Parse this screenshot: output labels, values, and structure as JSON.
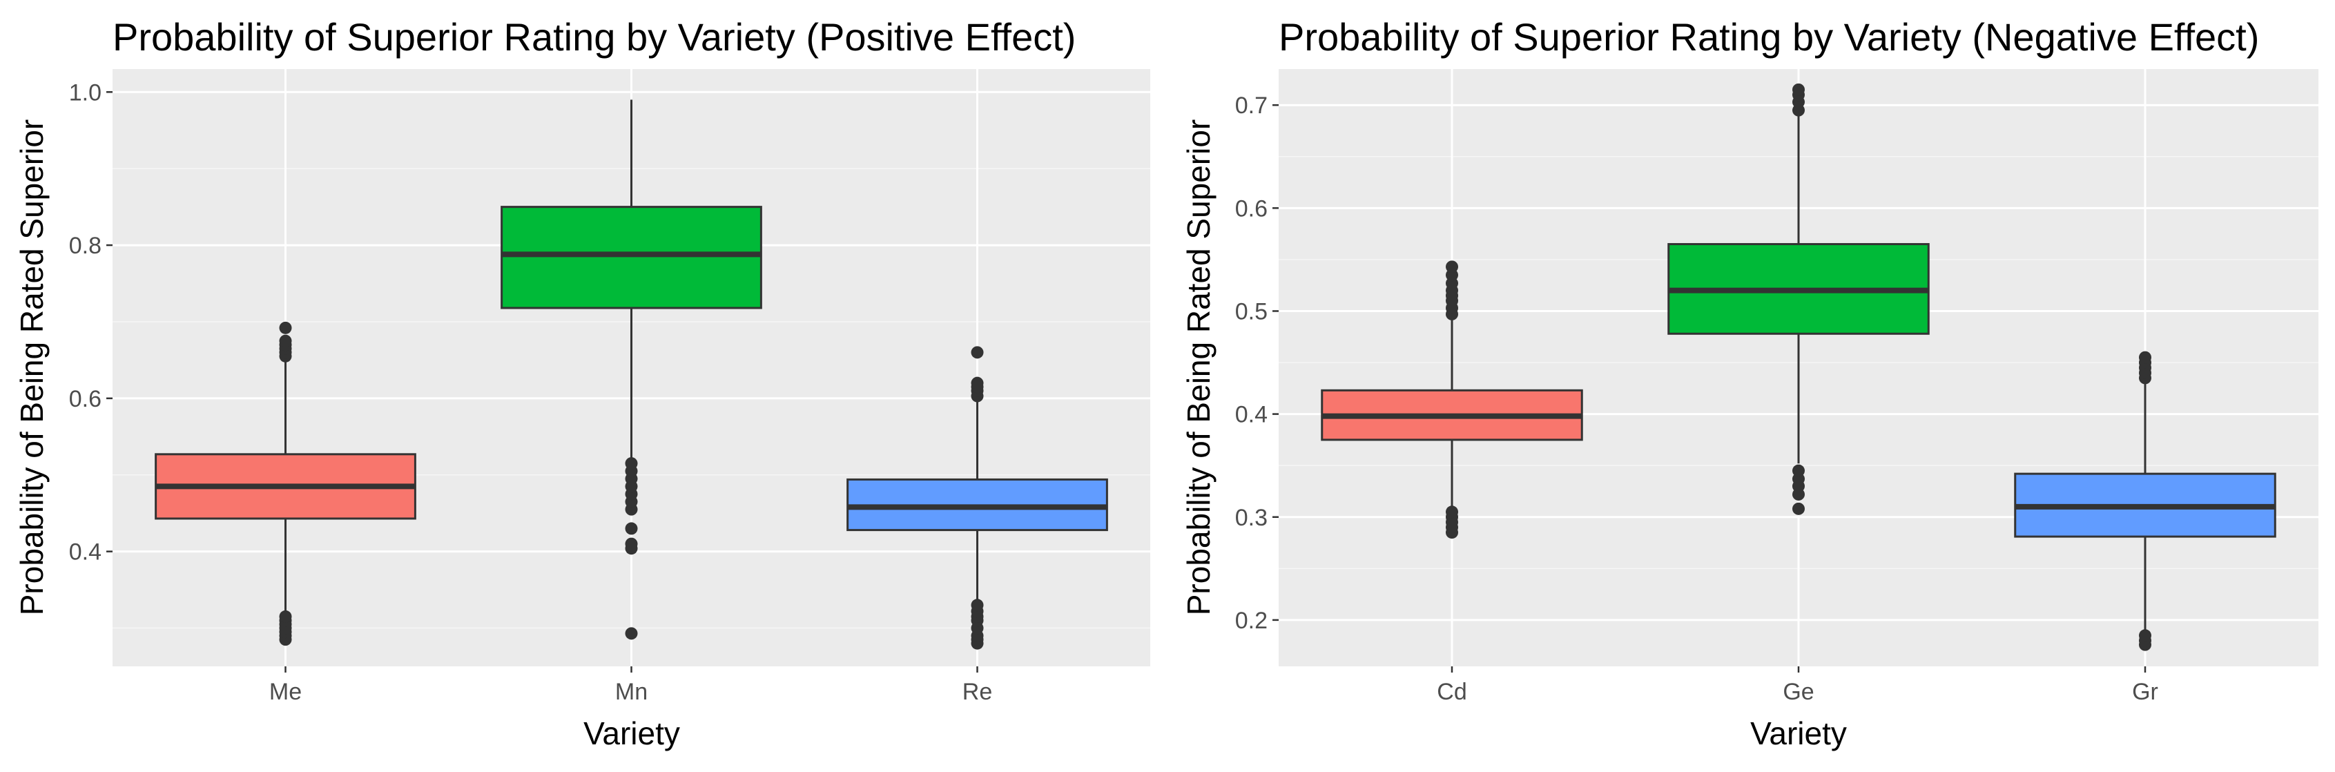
{
  "colors": {
    "panel_background": "#ebebeb",
    "grid_major": "#ffffff",
    "box_outline": "#333333",
    "outlier": "#333333",
    "fill_1": "#f8766d",
    "fill_2": "#00ba38",
    "fill_3": "#619cff"
  },
  "chart_data": [
    {
      "type": "boxplot",
      "title": "Probability of Superior Rating by Variety (Positive Effect)",
      "xlabel": "Variety",
      "ylabel": "Probability of Being Rated Superior",
      "ylim": [
        0.25,
        1.03
      ],
      "yticks": [
        0.4,
        0.6,
        0.8,
        1.0
      ],
      "ytick_labels": [
        "0.4",
        "0.6",
        "0.8",
        "1.0"
      ],
      "grid": true,
      "legend": "none",
      "categories": [
        "Me",
        "Mn",
        "Re"
      ],
      "boxes": [
        {
          "category": "Me",
          "color": "#f8766d",
          "whisker_low": 0.32,
          "q1": 0.443,
          "median": 0.485,
          "q3": 0.527,
          "whisker_high": 0.652,
          "outliers": [
            0.285,
            0.29,
            0.295,
            0.3,
            0.305,
            0.31,
            0.315,
            0.655,
            0.66,
            0.665,
            0.67,
            0.675,
            0.692
          ]
        },
        {
          "category": "Mn",
          "color": "#00ba38",
          "whisker_low": 0.52,
          "q1": 0.718,
          "median": 0.788,
          "q3": 0.85,
          "whisker_high": 0.99,
          "outliers": [
            0.293,
            0.404,
            0.41,
            0.43,
            0.455,
            0.465,
            0.475,
            0.485,
            0.495,
            0.505,
            0.515
          ]
        },
        {
          "category": "Re",
          "color": "#619cff",
          "whisker_low": 0.33,
          "q1": 0.428,
          "median": 0.458,
          "q3": 0.494,
          "whisker_high": 0.598,
          "outliers": [
            0.28,
            0.285,
            0.29,
            0.3,
            0.31,
            0.315,
            0.322,
            0.33,
            0.603,
            0.61,
            0.615,
            0.62,
            0.66
          ]
        }
      ]
    },
    {
      "type": "boxplot",
      "title": "Probability of Superior Rating by Variety (Negative Effect)",
      "xlabel": "Variety",
      "ylabel": "Probability of Being Rated Superior",
      "ylim": [
        0.155,
        0.735
      ],
      "yticks": [
        0.2,
        0.3,
        0.4,
        0.5,
        0.6,
        0.7
      ],
      "ytick_labels": [
        "0.2",
        "0.3",
        "0.4",
        "0.5",
        "0.6",
        "0.7"
      ],
      "grid": true,
      "legend": "none",
      "categories": [
        "Cd",
        "Ge",
        "Gr"
      ],
      "boxes": [
        {
          "category": "Cd",
          "color": "#f8766d",
          "whisker_low": 0.31,
          "q1": 0.375,
          "median": 0.398,
          "q3": 0.423,
          "whisker_high": 0.493,
          "outliers": [
            0.285,
            0.29,
            0.295,
            0.3,
            0.305,
            0.497,
            0.503,
            0.51,
            0.515,
            0.52,
            0.527,
            0.535,
            0.543
          ]
        },
        {
          "category": "Ge",
          "color": "#00ba38",
          "whisker_low": 0.352,
          "q1": 0.478,
          "median": 0.52,
          "q3": 0.565,
          "whisker_high": 0.69,
          "outliers": [
            0.308,
            0.322,
            0.33,
            0.337,
            0.345,
            0.695,
            0.703,
            0.71,
            0.715
          ]
        },
        {
          "category": "Gr",
          "color": "#619cff",
          "whisker_low": 0.19,
          "q1": 0.281,
          "median": 0.31,
          "q3": 0.342,
          "whisker_high": 0.432,
          "outliers": [
            0.176,
            0.18,
            0.185,
            0.435,
            0.44,
            0.445,
            0.45,
            0.455
          ]
        }
      ]
    }
  ]
}
